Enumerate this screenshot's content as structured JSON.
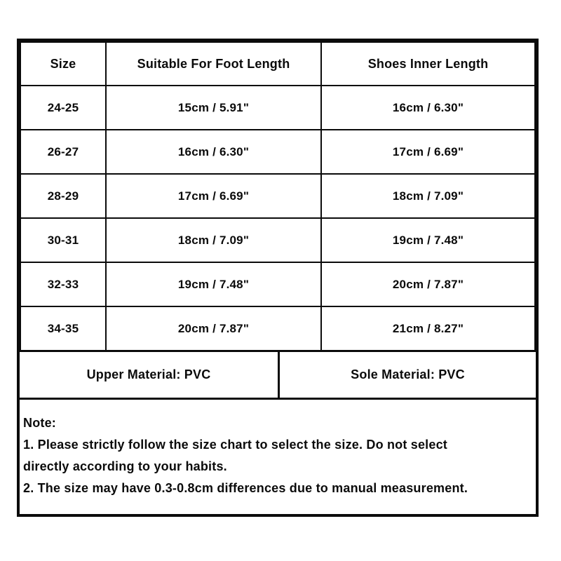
{
  "colors": {
    "background": "#ffffff",
    "text": "#0b0b0b",
    "border": "#0b0b0b"
  },
  "size_chart": {
    "headers": [
      "Size",
      "Suitable For Foot Length",
      "Shoes Inner Length"
    ],
    "rows": [
      {
        "size": "24-25",
        "foot_length": "15cm / 5.91\"",
        "inner_length": "16cm / 6.30\""
      },
      {
        "size": "26-27",
        "foot_length": "16cm / 6.30\"",
        "inner_length": "17cm / 6.69\""
      },
      {
        "size": "28-29",
        "foot_length": "17cm / 6.69\"",
        "inner_length": "18cm / 7.09\""
      },
      {
        "size": "30-31",
        "foot_length": "18cm / 7.09\"",
        "inner_length": "19cm / 7.48\""
      },
      {
        "size": "32-33",
        "foot_length": "19cm / 7.48\"",
        "inner_length": "20cm / 7.87\""
      },
      {
        "size": "34-35",
        "foot_length": "20cm / 7.87\"",
        "inner_length": "21cm / 8.27\""
      }
    ]
  },
  "materials": {
    "upper": "Upper Material: PVC",
    "sole": "Sole Material: PVC"
  },
  "note": {
    "title": "Note:",
    "lines": [
      "1. Please strictly follow the size chart to select the size. Do not select",
      "directly according to your habits.",
      "2. The size may have 0.3-0.8cm differences due to manual measurement."
    ]
  }
}
